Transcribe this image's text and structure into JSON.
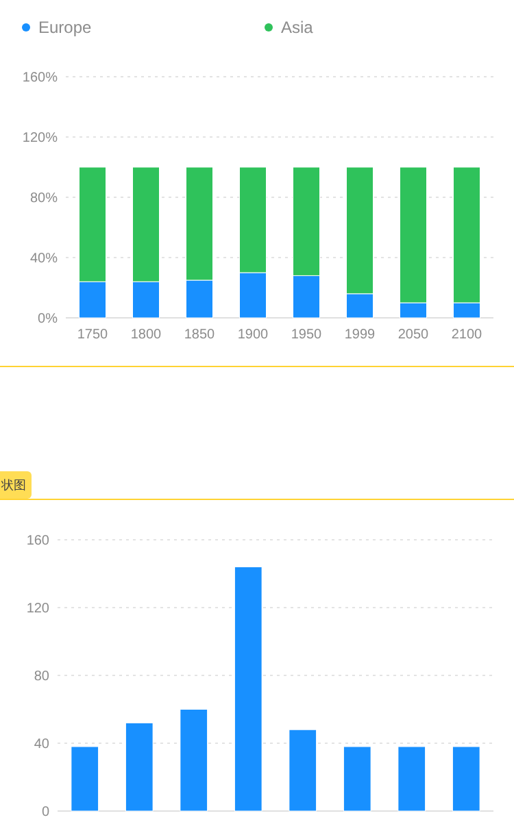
{
  "chart_data": [
    {
      "type": "bar",
      "stacked": true,
      "categories": [
        "1750",
        "1800",
        "1850",
        "1900",
        "1950",
        "1999",
        "2050",
        "2100"
      ],
      "series": [
        {
          "name": "Europe",
          "color": "#1890ff",
          "values": [
            24,
            24,
            25,
            30,
            28,
            16,
            10,
            10
          ]
        },
        {
          "name": "Asia",
          "color": "#2fc25b",
          "values": [
            76,
            76,
            75,
            70,
            72,
            84,
            90,
            90
          ]
        }
      ],
      "ylim": [
        0,
        160
      ],
      "yticks": [
        {
          "value": 0,
          "label": "0%"
        },
        {
          "value": 40,
          "label": "40%"
        },
        {
          "value": 80,
          "label": "80%"
        },
        {
          "value": 120,
          "label": "120%"
        },
        {
          "value": 160,
          "label": "160%"
        }
      ],
      "grid": "y",
      "legend": "top"
    },
    {
      "type": "bar",
      "title": "状图",
      "categories": [
        null,
        null,
        null,
        null,
        null,
        null,
        null,
        null
      ],
      "series": [
        {
          "color": "#1890ff",
          "values": [
            38,
            52,
            60,
            144,
            48,
            38,
            38,
            38
          ]
        }
      ],
      "ylim": [
        0,
        160
      ],
      "yticks": [
        0,
        40,
        80,
        120,
        160
      ],
      "grid": "y"
    }
  ]
}
